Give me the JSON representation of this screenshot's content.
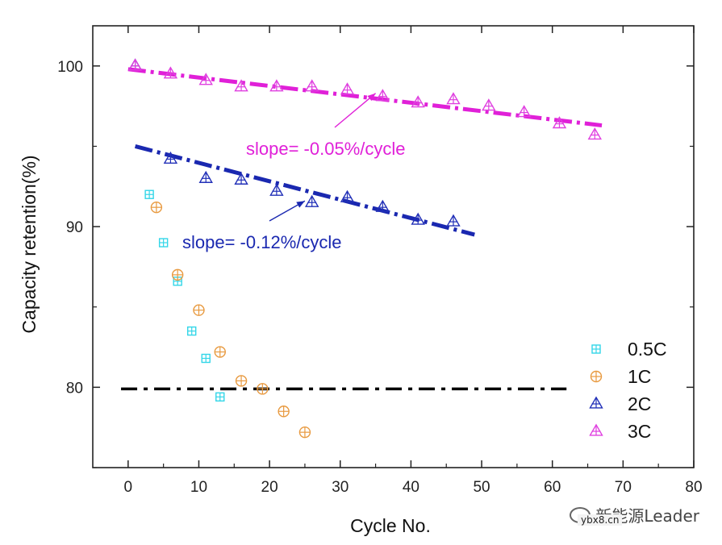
{
  "chart_data": {
    "type": "scatter",
    "title": "",
    "xlabel": "Cycle No.",
    "ylabel": "Capacity retention(%)",
    "xlim": [
      -5,
      80
    ],
    "ylim": [
      75,
      102.5
    ],
    "xticks": [
      0,
      10,
      20,
      30,
      40,
      50,
      60,
      70,
      80
    ],
    "yticks": [
      80,
      90,
      100
    ],
    "grid": false,
    "legend_position": "bottom-right",
    "series": [
      {
        "name": "0.5C",
        "marker": "square-plus",
        "color": "#33d6e8",
        "x": [
          3,
          5,
          7,
          9,
          11,
          13
        ],
        "y": [
          92,
          89,
          86.6,
          83.5,
          81.8,
          79.4
        ]
      },
      {
        "name": "1C",
        "marker": "circle-plus",
        "color": "#e89a40",
        "x": [
          4,
          7,
          10,
          13,
          16,
          19,
          22,
          25
        ],
        "y": [
          91.2,
          87,
          84.8,
          82.2,
          80.4,
          79.9,
          78.5,
          77.2
        ]
      },
      {
        "name": "2C",
        "marker": "triangle-up",
        "color": "#2230b8",
        "x": [
          1,
          6,
          11,
          16,
          21,
          26,
          31,
          36,
          41,
          46
        ],
        "y": [
          100,
          94.2,
          93,
          92.9,
          92.2,
          91.5,
          91.8,
          91.2,
          90.4,
          90.3
        ]
      },
      {
        "name": "3C",
        "marker": "triangle-up",
        "color": "#e040e0",
        "x": [
          1,
          6,
          11,
          16,
          21,
          26,
          31,
          36,
          41,
          46,
          51,
          56,
          61,
          66
        ],
        "y": [
          100,
          99.5,
          99.1,
          98.7,
          98.7,
          98.7,
          98.5,
          98.1,
          97.7,
          97.9,
          97.5,
          97.1,
          96.4,
          95.7
        ]
      }
    ],
    "fit_lines": [
      {
        "name": "3C fit",
        "color": "#e020d8",
        "x": [
          0,
          67
        ],
        "y": [
          99.8,
          96.3
        ]
      },
      {
        "name": "2C fit",
        "color": "#1a28b0",
        "x": [
          1,
          49
        ],
        "y": [
          95,
          89.5
        ]
      },
      {
        "name": "80% threshold",
        "color": "#000000",
        "x": [
          -1,
          62
        ],
        "y": [
          79.9,
          79.9
        ]
      }
    ],
    "annotations": [
      {
        "text": "slope= -0.05%/cycle",
        "color": "#e020d8",
        "arrow_to": [
          35,
          98.3
        ]
      },
      {
        "text": "slope= -0.12%/cycle",
        "color": "#1a28b0",
        "arrow_to": [
          25,
          91.6
        ]
      }
    ]
  },
  "watermark": {
    "brand": "新能源Leader",
    "site": "ybx8.cn"
  }
}
